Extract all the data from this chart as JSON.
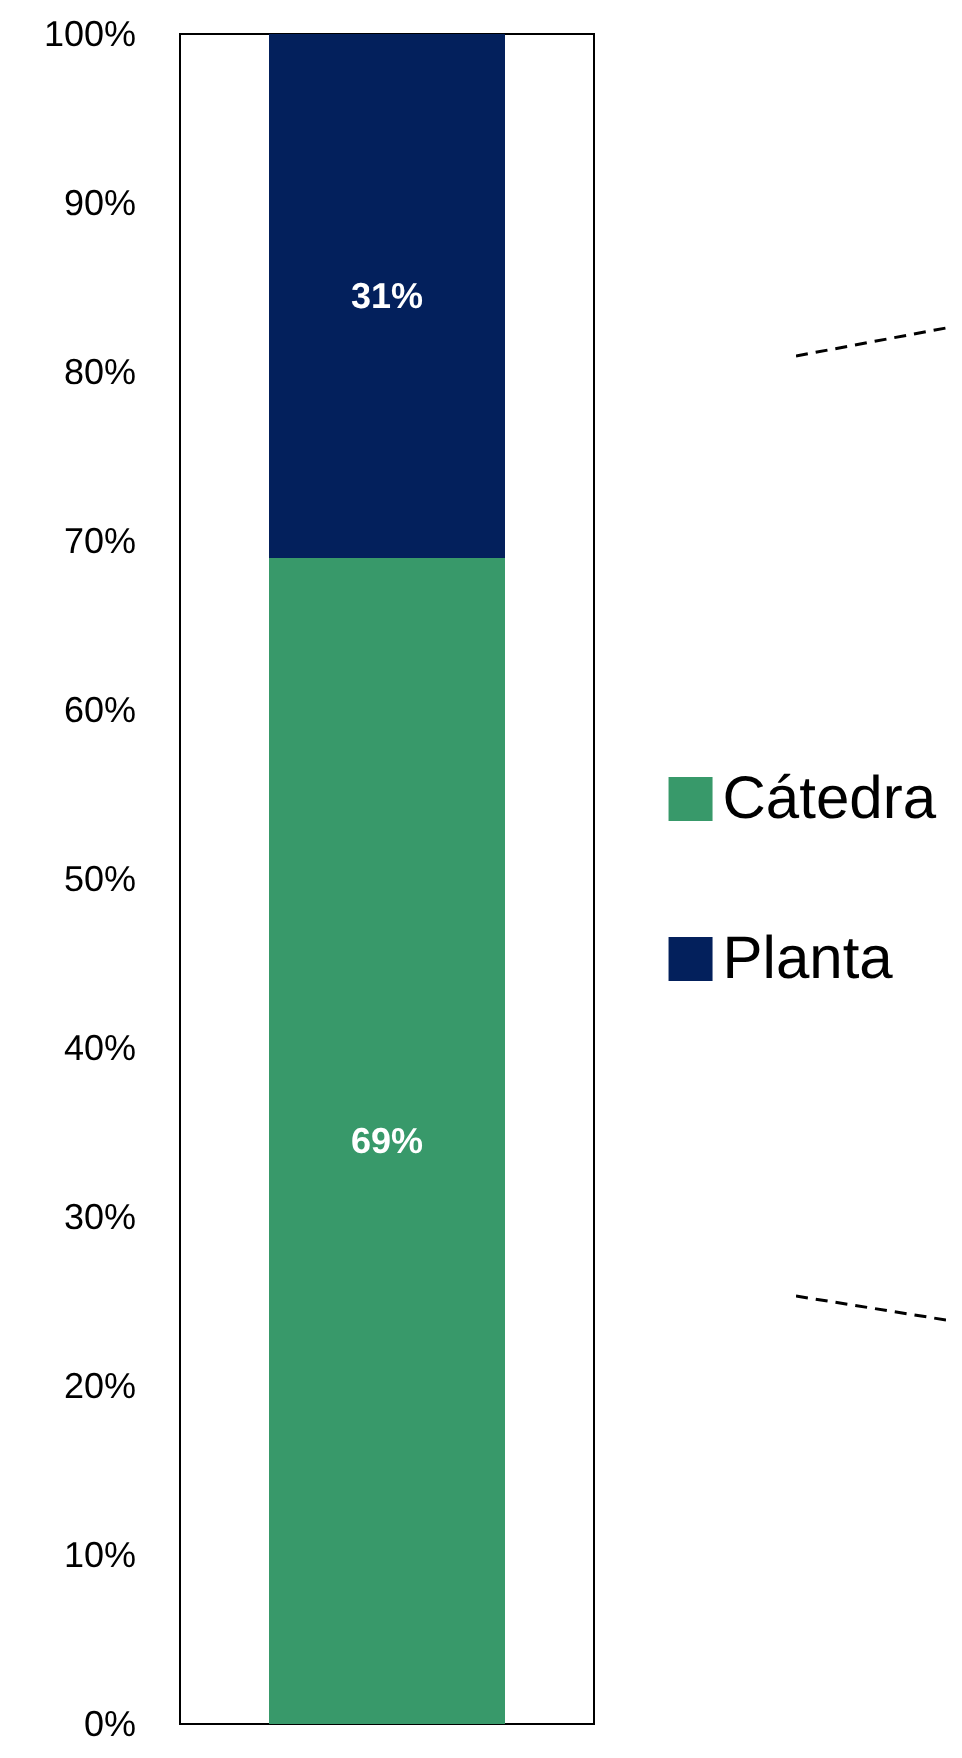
{
  "chart_data": {
    "type": "bar",
    "stacked": true,
    "categories": [
      null
    ],
    "series": [
      {
        "name": "Cátedra",
        "color": "#38996a",
        "values": [
          69
        ],
        "value_labels": [
          "69%"
        ]
      },
      {
        "name": "Planta",
        "color": "#03205c",
        "values": [
          31
        ],
        "value_labels": [
          "31%"
        ]
      }
    ],
    "ylim": [
      0,
      100
    ],
    "yticks": [
      {
        "value": 0,
        "label": "0%"
      },
      {
        "value": 10,
        "label": "10%"
      },
      {
        "value": 20,
        "label": "20%"
      },
      {
        "value": 30,
        "label": "30%"
      },
      {
        "value": 40,
        "label": "40%"
      },
      {
        "value": 50,
        "label": "50%"
      },
      {
        "value": 60,
        "label": "60%"
      },
      {
        "value": 70,
        "label": "70%"
      },
      {
        "value": 80,
        "label": "80%"
      },
      {
        "value": 90,
        "label": "90%"
      },
      {
        "value": 100,
        "label": "100%"
      }
    ],
    "grid": false,
    "legend": "right"
  }
}
